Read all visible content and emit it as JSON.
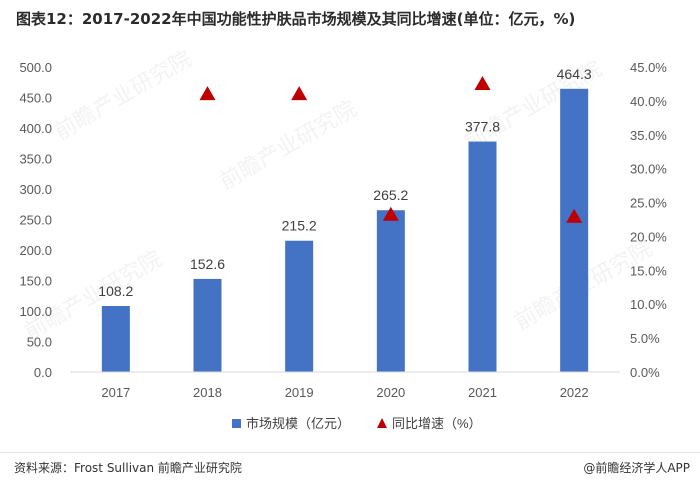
{
  "title": "图表12：2017-2022年中国功能性护肤品市场规模及其同比增速(单位：亿元，%)",
  "source": "资料来源：Frost Sullivan 前瞻产业研究院",
  "brand": "@前瞻经济学人APP",
  "watermark": "前瞻产业研究院",
  "colors": {
    "bar": "#4472c4",
    "marker": "#c00000",
    "axis_text": "#595959",
    "grid": "#d9d9d9"
  },
  "chart_data": {
    "type": "bar",
    "categories": [
      "2017",
      "2018",
      "2019",
      "2020",
      "2021",
      "2022"
    ],
    "series": [
      {
        "name": "市场规模（亿元）",
        "type": "bar",
        "axis": "left",
        "values": [
          108.2,
          152.6,
          215.2,
          265.2,
          377.8,
          464.3
        ],
        "labels": [
          "108.2",
          "152.6",
          "215.2",
          "265.2",
          "377.8",
          "464.3"
        ]
      },
      {
        "name": "同比增速（%）",
        "type": "marker",
        "axis": "right",
        "values": [
          null,
          41.0,
          41.0,
          23.2,
          42.5,
          22.9
        ]
      }
    ],
    "ylim_left": [
      0,
      500
    ],
    "yticks_left": [
      "0.0",
      "50.0",
      "100.0",
      "150.0",
      "200.0",
      "250.0",
      "300.0",
      "350.0",
      "400.0",
      "450.0",
      "500.0"
    ],
    "ylim_right": [
      0,
      45
    ],
    "yticks_right": [
      "0.0%",
      "5.0%",
      "10.0%",
      "15.0%",
      "20.0%",
      "25.0%",
      "30.0%",
      "35.0%",
      "40.0%",
      "45.0%"
    ],
    "legend_position": "bottom-center",
    "grid": false
  }
}
